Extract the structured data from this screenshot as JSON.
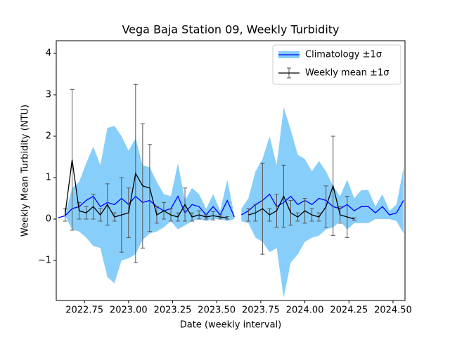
{
  "chart_data": {
    "type": "line",
    "title": "Vega Baja Station 09, Weekly Turbidity",
    "xlabel": "Date (weekly interval)",
    "ylabel": "Weekly Mean Turbidity (NTU)",
    "xlim": [
      2022.59,
      2024.568
    ],
    "ylim": [
      -1.966,
      4.305
    ],
    "xticks": [
      2022.75,
      {
        "value": 2023,
        "label": "2023.00"
      },
      2023.25,
      {
        "value": 2023.5,
        "label": "2023.50"
      },
      2023.75,
      {
        "value": 2024,
        "label": "2024.00"
      },
      2024.25,
      {
        "value": 2024.5,
        "label": "2024.50"
      }
    ],
    "yticks": [
      {
        "value": -1,
        "label": "−1"
      },
      0,
      1,
      2,
      3,
      4
    ],
    "legend": "upper right",
    "series": [
      {
        "name": "Climatology ±1σ",
        "color": "#0000ff",
        "band_color": "#87cefa",
        "x": [
          2022.6,
          2022.64,
          2022.68,
          2022.72,
          2022.76,
          2022.8,
          2022.84,
          2022.88,
          2022.92,
          2022.96,
          2023.0,
          2023.04,
          2023.08,
          2023.12,
          2023.16,
          2023.2,
          2023.24,
          2023.28,
          2023.32,
          2023.36,
          2023.4,
          2023.44,
          2023.48,
          2023.52,
          2023.56,
          2023.6,
          2023.62,
          2023.64,
          2023.68,
          2023.72,
          2023.76,
          2023.8,
          2023.84,
          2023.88,
          2023.92,
          2023.96,
          2024.0,
          2024.04,
          2024.08,
          2024.12,
          2024.16,
          2024.2,
          2024.24,
          2024.28,
          2024.32,
          2024.36,
          2024.4,
          2024.44,
          2024.48,
          2024.52,
          2024.56
        ],
        "values": [
          0.03,
          0.08,
          0.25,
          0.3,
          0.45,
          0.55,
          0.3,
          0.4,
          0.35,
          0.5,
          0.35,
          0.55,
          0.4,
          0.45,
          0.3,
          0.2,
          0.25,
          0.55,
          0.15,
          0.35,
          0.3,
          0.1,
          0.3,
          0.1,
          0.45,
          0.05,
          null,
          0.1,
          0.2,
          0.35,
          0.45,
          0.6,
          0.3,
          0.4,
          0.55,
          0.35,
          0.45,
          0.35,
          0.5,
          0.45,
          0.3,
          0.25,
          0.35,
          0.2,
          0.3,
          0.3,
          0.15,
          0.3,
          0.1,
          0.15,
          0.45
        ],
        "errors": [
          0,
          0,
          0.5,
          0.6,
          0.9,
          1.2,
          1.0,
          1.8,
          1.9,
          1.5,
          1.3,
          1.4,
          0.9,
          0.8,
          0.6,
          0.4,
          0.3,
          0.8,
          0.3,
          0.4,
          0.3,
          0.15,
          0.3,
          0.1,
          0.5,
          0.05,
          null,
          0.15,
          0.3,
          0.8,
          1.0,
          1.4,
          1.0,
          2.3,
          1.6,
          1.2,
          1.0,
          0.8,
          0.9,
          0.7,
          0.5,
          0.3,
          0.6,
          0.3,
          0.4,
          0.4,
          0.15,
          0.3,
          0.1,
          0.2,
          0.8
        ]
      },
      {
        "name": "Weekly mean ±1σ",
        "color": "#000000",
        "errorbar_color": "#555555",
        "x": [
          2022.64,
          2022.68,
          2022.72,
          2022.76,
          2022.8,
          2022.84,
          2022.88,
          2022.92,
          2022.96,
          2023.0,
          2023.04,
          2023.08,
          2023.12,
          2023.16,
          2023.2,
          2023.24,
          2023.28,
          2023.32,
          2023.36,
          2023.4,
          2023.44,
          2023.48,
          2023.52,
          2023.56,
          2023.6,
          2023.68,
          2023.72,
          2023.76,
          2023.8,
          2023.84,
          2023.88,
          2023.92,
          2023.96,
          2024.0,
          2024.04,
          2024.08,
          2024.12,
          2024.16,
          2024.2,
          2024.24,
          2024.28
        ],
        "values": [
          0.1,
          1.43,
          0.2,
          0.15,
          0.3,
          0.1,
          0.35,
          0.05,
          0.1,
          0.15,
          1.1,
          0.8,
          0.75,
          0.1,
          0.2,
          0.1,
          0.05,
          0.35,
          0.05,
          0.1,
          0.05,
          0.08,
          0.05,
          0.03,
          null,
          0.1,
          0.15,
          0.25,
          0.1,
          0.2,
          0.55,
          0.15,
          0.05,
          0.2,
          0.1,
          0.05,
          0.3,
          0.8,
          0.1,
          0.05,
          0.0
        ],
        "errors": [
          0.15,
          1.7,
          0.2,
          0.15,
          0.3,
          0.15,
          0.5,
          0.1,
          0.9,
          0.6,
          2.15,
          1.5,
          1.05,
          0.2,
          0.2,
          0.15,
          0.1,
          0.4,
          0.1,
          0.1,
          0.05,
          0.1,
          0.05,
          0.03,
          null,
          0.15,
          0.2,
          1.1,
          0.15,
          0.4,
          0.75,
          0.3,
          0.1,
          0.3,
          0.15,
          0.1,
          0.5,
          1.2,
          0.2,
          0.5,
          0.03
        ]
      }
    ]
  }
}
